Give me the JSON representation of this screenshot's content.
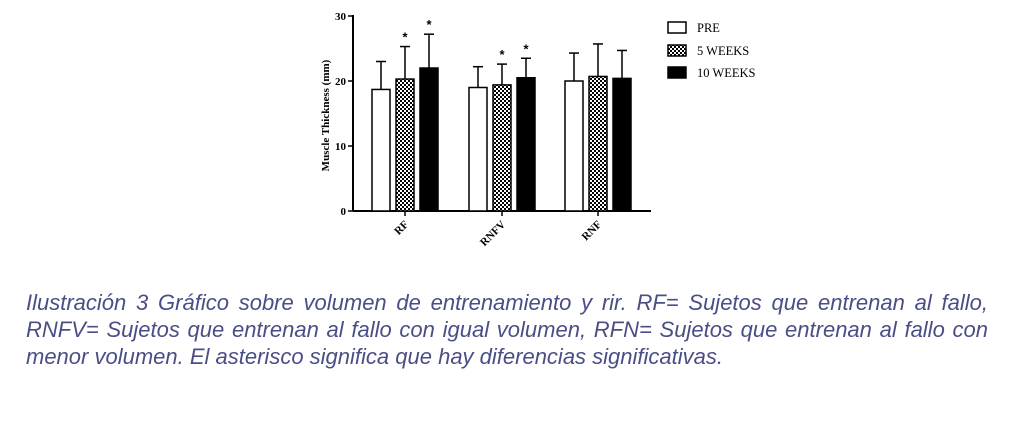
{
  "colors": {
    "ink": "#000000",
    "caption": "#4a4e86",
    "fill_pre": "#ffffff",
    "fill_10w": "#000000"
  },
  "chart_data": {
    "type": "bar",
    "title": "",
    "xlabel": "",
    "ylabel": "Muscle Thickness (mm)",
    "ylim": [
      0,
      30
    ],
    "yticks": [
      "0",
      "10",
      "20",
      "30"
    ],
    "categories": [
      "RF",
      "RNFV",
      "RNF"
    ],
    "legend_position": "top-right",
    "series": [
      {
        "name": "PRE",
        "pattern": "solid-white",
        "values": [
          18.7,
          19.0,
          20.0
        ],
        "errors": [
          4.3,
          3.2,
          4.3
        ],
        "significant": [
          false,
          false,
          false
        ]
      },
      {
        "name": "5 WEEKS",
        "pattern": "checkered",
        "values": [
          20.3,
          19.4,
          20.7
        ],
        "errors": [
          5.0,
          3.2,
          5.0
        ],
        "significant": [
          true,
          true,
          false
        ]
      },
      {
        "name": "10 WEEKS",
        "pattern": "solid-black",
        "values": [
          22.0,
          20.5,
          20.4
        ],
        "errors": [
          5.2,
          3.0,
          4.3
        ],
        "significant": [
          true,
          true,
          false
        ]
      }
    ],
    "significance_marker": "*"
  },
  "caption": {
    "text": "Ilustración 3 Gráfico sobre volumen de entrenamiento y rir. RF= Sujetos que entrenan al fallo, RNFV= Sujetos que entrenan al fallo con igual volumen, RFN= Sujetos que entrenan al fallo con menor volumen. El asterisco significa que hay diferencias significativas."
  }
}
